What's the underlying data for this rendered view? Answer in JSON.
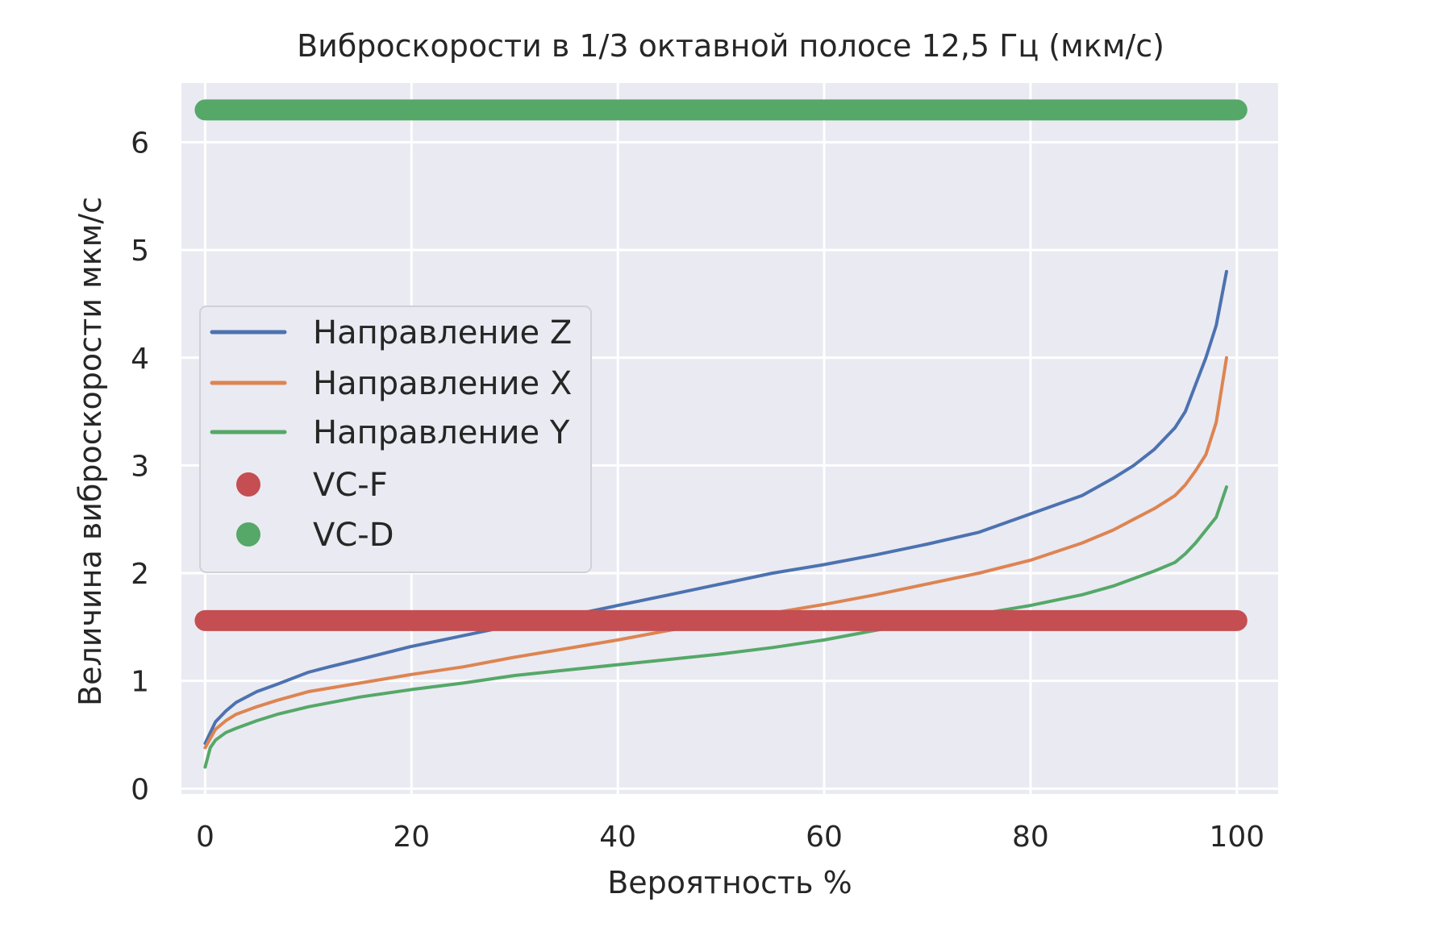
{
  "chart_data": {
    "type": "line",
    "title": "Виброскорости в 1/3 октавной полосе 12,5 Гц (мкм/с)",
    "xlabel": "Вероятность %",
    "ylabel": "Величина виброскорости мкм/с",
    "xlim": [
      -2.3,
      104
    ],
    "ylim": [
      -0.05,
      6.55
    ],
    "xticks": [
      0,
      20,
      40,
      60,
      80,
      100
    ],
    "yticks": [
      0,
      1,
      2,
      3,
      4,
      5,
      6
    ],
    "grid": true,
    "legend_position": "center-left",
    "series": [
      {
        "name": "Направление Z",
        "kind": "line",
        "color": "#4c72b0",
        "x": [
          0,
          1,
          2,
          3,
          5,
          7,
          10,
          12,
          15,
          20,
          25,
          30,
          35,
          40,
          45,
          50,
          55,
          60,
          65,
          70,
          75,
          80,
          85,
          88,
          90,
          92,
          94,
          95,
          96,
          97,
          98,
          99
        ],
        "y": [
          0.42,
          0.62,
          0.72,
          0.8,
          0.9,
          0.97,
          1.08,
          1.13,
          1.2,
          1.32,
          1.42,
          1.52,
          1.6,
          1.7,
          1.8,
          1.9,
          2.0,
          2.08,
          2.17,
          2.27,
          2.38,
          2.55,
          2.72,
          2.88,
          3.0,
          3.15,
          3.35,
          3.5,
          3.75,
          4.0,
          4.3,
          4.8
        ]
      },
      {
        "name": "Направление X",
        "kind": "line",
        "color": "#dd8452",
        "x": [
          0,
          1,
          2,
          3,
          5,
          7,
          10,
          15,
          20,
          25,
          30,
          35,
          40,
          45,
          50,
          55,
          60,
          65,
          70,
          75,
          80,
          85,
          88,
          90,
          92,
          94,
          95,
          96,
          97,
          98,
          99
        ],
        "y": [
          0.38,
          0.55,
          0.63,
          0.69,
          0.76,
          0.82,
          0.9,
          0.98,
          1.06,
          1.13,
          1.22,
          1.3,
          1.38,
          1.47,
          1.55,
          1.63,
          1.71,
          1.8,
          1.9,
          2.0,
          2.12,
          2.28,
          2.4,
          2.5,
          2.6,
          2.72,
          2.82,
          2.95,
          3.1,
          3.4,
          4.0
        ]
      },
      {
        "name": "Направление Y",
        "kind": "line",
        "color": "#55a868",
        "x": [
          0,
          0.5,
          1,
          2,
          3,
          5,
          7,
          10,
          15,
          20,
          25,
          30,
          35,
          40,
          45,
          50,
          55,
          60,
          65,
          70,
          75,
          80,
          85,
          88,
          90,
          92,
          94,
          95,
          96,
          97,
          98,
          99
        ],
        "y": [
          0.2,
          0.38,
          0.45,
          0.52,
          0.56,
          0.63,
          0.69,
          0.76,
          0.85,
          0.92,
          0.98,
          1.05,
          1.1,
          1.15,
          1.2,
          1.25,
          1.31,
          1.38,
          1.47,
          1.55,
          1.62,
          1.7,
          1.8,
          1.88,
          1.95,
          2.02,
          2.1,
          2.18,
          2.28,
          2.4,
          2.52,
          2.8
        ]
      },
      {
        "name": "VC-F",
        "kind": "scatter",
        "color": "#c44e52",
        "x": [
          0,
          100
        ],
        "y": [
          1.56,
          1.56
        ]
      },
      {
        "name": "VC-D",
        "kind": "scatter",
        "color": "#55a868",
        "x": [
          0,
          100
        ],
        "y": [
          6.3,
          6.3
        ]
      }
    ],
    "plot_style": {
      "background": "#eaeaf2",
      "grid_color": "#ffffff"
    }
  }
}
